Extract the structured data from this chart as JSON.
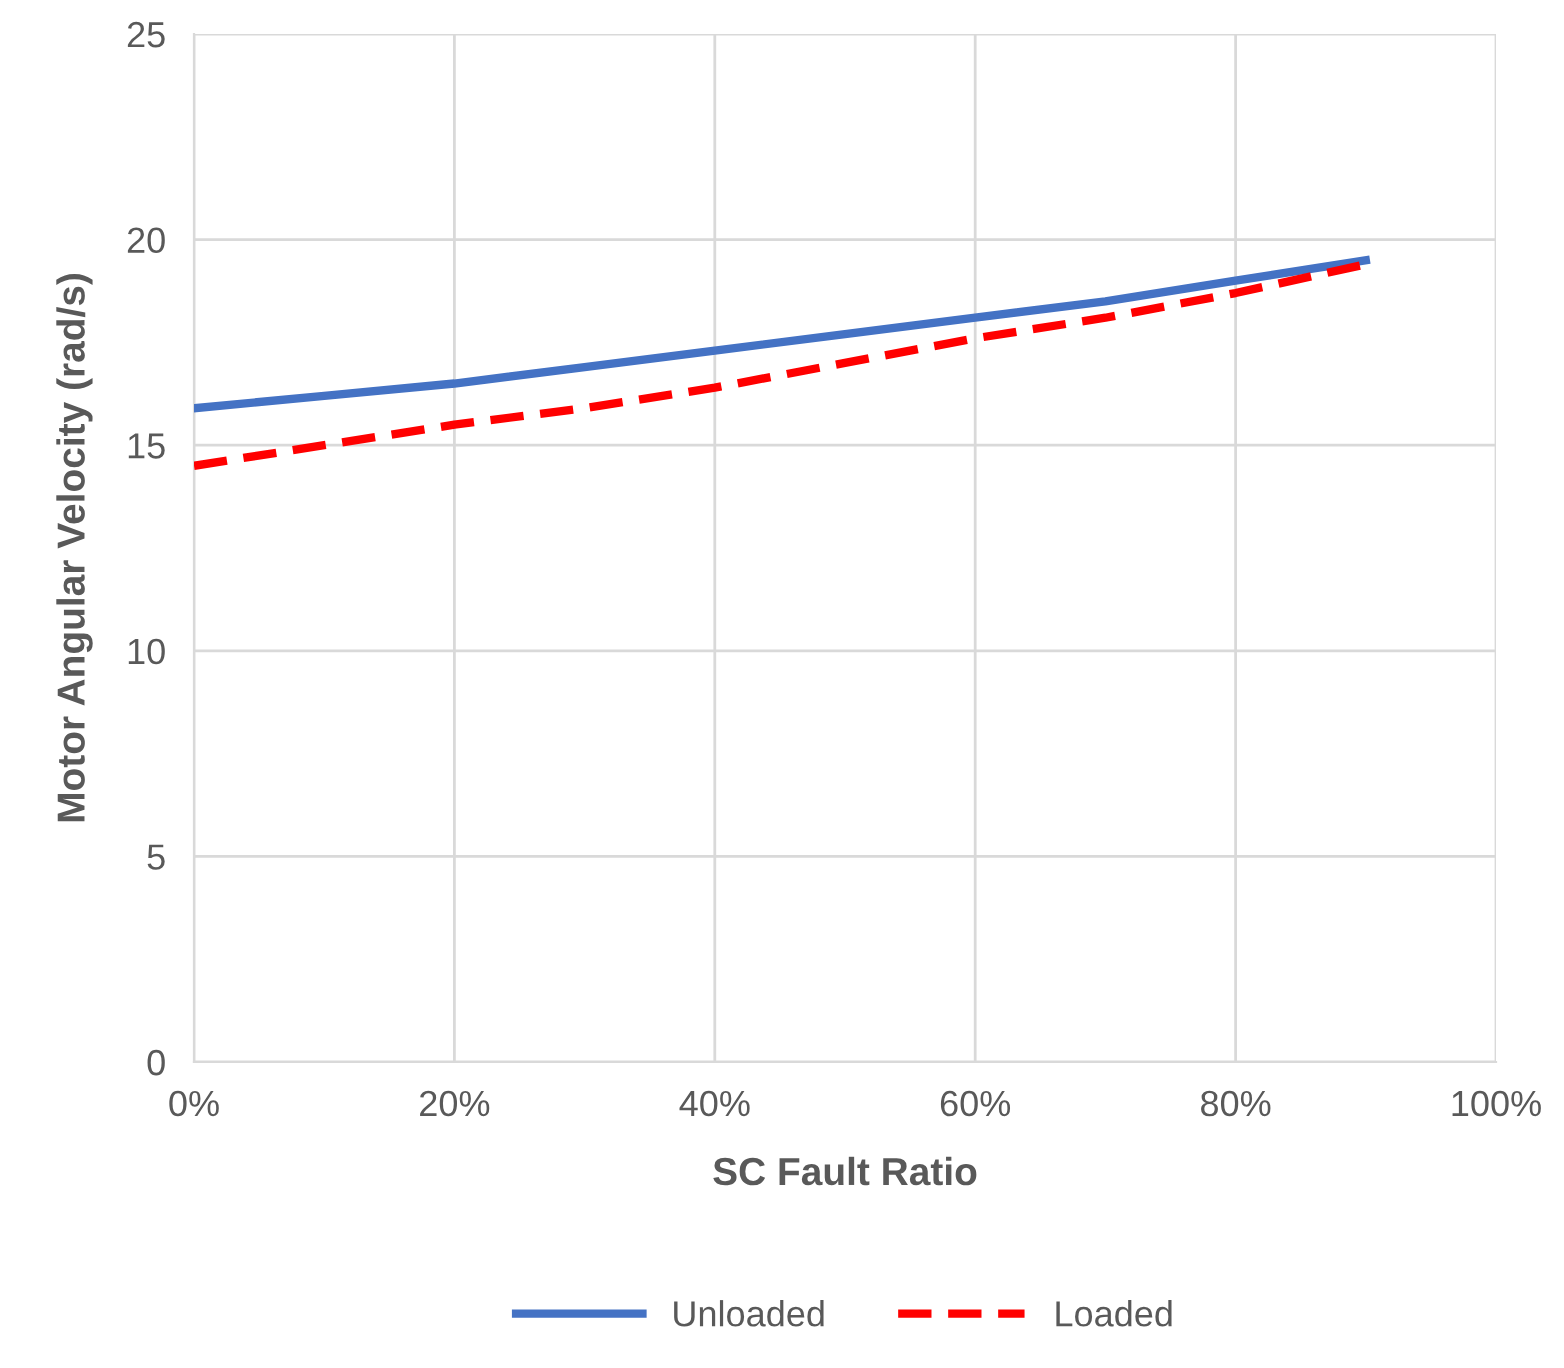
{
  "chart_data": {
    "type": "line",
    "xlabel": "SC Fault Ratio",
    "ylabel": "Motor Angular Velocity (rad/s)",
    "x": [
      0,
      10,
      20,
      30,
      40,
      50,
      60,
      70,
      80,
      90
    ],
    "series": [
      {
        "name": "Unloaded",
        "color": "#4472c4",
        "line_style": "solid",
        "values": [
          15.9,
          16.2,
          16.5,
          16.9,
          17.3,
          17.7,
          18.1,
          18.5,
          19.0,
          19.5
        ]
      },
      {
        "name": "Loaded",
        "color": "#ff0000",
        "line_style": "dashed",
        "values": [
          14.5,
          15.0,
          15.5,
          15.9,
          16.4,
          17.0,
          17.6,
          18.1,
          18.7,
          19.4
        ]
      }
    ],
    "xlim": [
      0,
      100
    ],
    "ylim": [
      0,
      25
    ],
    "xticks": [
      {
        "value": 0,
        "label": "0%"
      },
      {
        "value": 20,
        "label": "20%"
      },
      {
        "value": 40,
        "label": "40%"
      },
      {
        "value": 60,
        "label": "60%"
      },
      {
        "value": 80,
        "label": "80%"
      },
      {
        "value": 100,
        "label": "100%"
      }
    ],
    "yticks": [
      0,
      5,
      10,
      15,
      20,
      25
    ],
    "grid": true,
    "legend": "bottom",
    "marker": "none"
  }
}
